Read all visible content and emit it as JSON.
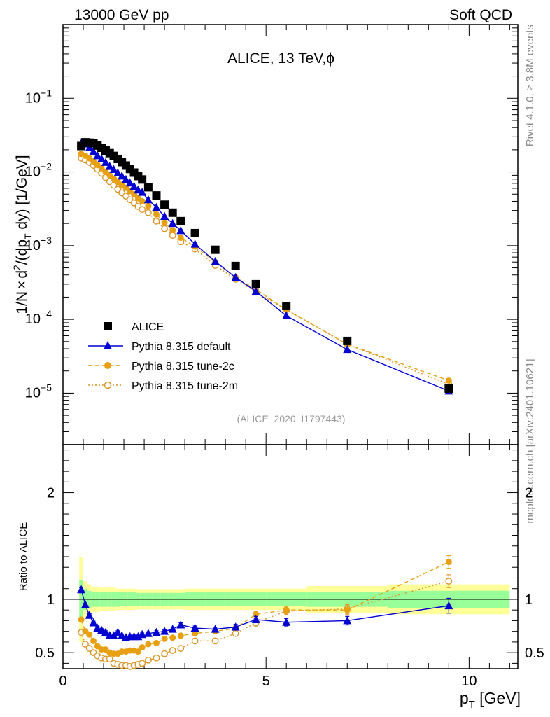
{
  "header": {
    "left": "13000 GeV pp",
    "right": "Soft QCD"
  },
  "title": "ALICE, 13 TeV,",
  "title_symbol": "ϕ",
  "side_labels": {
    "rivet": "Rivet 4.1.0, ≥ 3.8M events",
    "mcplots": "mcplots.cern.ch [arXiv:2401.10621]"
  },
  "analysis_id": "(ALICE_2020_I1797443)",
  "ratio_ylabel": "Ratio to ALICE",
  "colors": {
    "data": "#000000",
    "default": "#0000d0",
    "tune2c": "#e6a012",
    "tune2m": "#d99528",
    "band_inner": "#99ff99",
    "band_outer": "#ffff99"
  },
  "chart_data": [
    {
      "type": "scatter",
      "panel": "main",
      "title": "ALICE, 13 TeV, ϕ",
      "ylabel": "1/N × d²/(dp_T dy) [1/GeV]",
      "ylabel_parts": {
        "a": "1/N",
        "b": "×",
        "c": "d",
        "d": "2",
        "e": "/(dp",
        "f": "T",
        "g": " dy) [1/GeV]"
      },
      "yscale": "log",
      "xlim": [
        0,
        11.2
      ],
      "ylim": [
        2e-06,
        1
      ],
      "y_ticks": [
        {
          "v": 1e-05,
          "base": "10",
          "exp": "−5"
        },
        {
          "v": 0.0001,
          "base": "10",
          "exp": "−4"
        },
        {
          "v": 0.001,
          "base": "10",
          "exp": "−3"
        },
        {
          "v": 0.01,
          "base": "10",
          "exp": "−2"
        },
        {
          "v": 0.1,
          "base": "10",
          "exp": "−1"
        }
      ],
      "legend_position": "lower-left",
      "series": [
        {
          "name": "ALICE",
          "style": "filled-square",
          "x": [
            0.45,
            0.55,
            0.65,
            0.75,
            0.85,
            0.95,
            1.05,
            1.15,
            1.25,
            1.35,
            1.45,
            1.55,
            1.65,
            1.75,
            1.85,
            1.95,
            2.1,
            2.3,
            2.5,
            2.7,
            2.9,
            3.25,
            3.75,
            4.25,
            4.75,
            5.5,
            7.0,
            9.5
          ],
          "y": [
            0.0225,
            0.0253,
            0.025,
            0.0245,
            0.0228,
            0.0213,
            0.0195,
            0.018,
            0.0165,
            0.015,
            0.0136,
            0.0122,
            0.011,
            0.0098,
            0.0088,
            0.0079,
            0.0062,
            0.0048,
            0.0036,
            0.0028,
            0.00215,
            0.00148,
            0.00088,
            0.00053,
            0.0003,
            0.000152,
            5.1e-05,
            1.15e-05
          ]
        },
        {
          "name": "Pythia 8.315 default",
          "style": "line-triangle",
          "x": [
            0.45,
            0.55,
            0.65,
            0.75,
            0.85,
            0.95,
            1.05,
            1.15,
            1.25,
            1.35,
            1.45,
            1.55,
            1.65,
            1.75,
            1.85,
            1.95,
            2.1,
            2.3,
            2.5,
            2.7,
            2.9,
            3.25,
            3.75,
            4.25,
            4.75,
            5.5,
            7.0,
            9.5
          ],
          "y": [
            0.0245,
            0.024,
            0.0213,
            0.019,
            0.0166,
            0.0151,
            0.0135,
            0.0119,
            0.0108,
            0.0097,
            0.0088,
            0.0079,
            0.0071,
            0.0064,
            0.0057,
            0.0053,
            0.0042,
            0.0033,
            0.0025,
            0.002,
            0.0016,
            0.00105,
            0.00061,
            0.00037,
            0.00024,
            0.000112,
            3.9e-05,
            1.07e-05
          ]
        },
        {
          "name": "Pythia 8.315 tune-2c",
          "style": "dashed-filled-circle",
          "x": [
            0.45,
            0.55,
            0.65,
            0.75,
            0.85,
            0.95,
            1.05,
            1.15,
            1.25,
            1.35,
            1.45,
            1.55,
            1.65,
            1.75,
            1.85,
            1.95,
            2.1,
            2.3,
            2.5,
            2.7,
            2.9,
            3.25,
            3.75,
            4.25,
            4.75,
            5.5,
            7.0,
            9.5
          ],
          "y": [
            0.0176,
            0.0166,
            0.0153,
            0.0139,
            0.0124,
            0.0112,
            0.01,
            0.009,
            0.0081,
            0.0073,
            0.0067,
            0.0061,
            0.0055,
            0.005,
            0.0044,
            0.004,
            0.00345,
            0.00265,
            0.00205,
            0.00162,
            0.00128,
            0.00097,
            0.0006,
            0.00037,
            0.000255,
            0.000135,
            4.6e-05,
            1.48e-05
          ]
        },
        {
          "name": "Pythia 8.315 tune-2m",
          "style": "dotted-open-circle",
          "x": [
            0.45,
            0.55,
            0.65,
            0.75,
            0.85,
            0.95,
            1.05,
            1.15,
            1.25,
            1.35,
            1.45,
            1.55,
            1.65,
            1.75,
            1.85,
            1.95,
            2.1,
            2.3,
            2.5,
            2.7,
            2.9,
            3.25,
            3.75,
            4.25,
            4.75,
            5.5,
            7.0,
            9.5
          ],
          "y": [
            0.0154,
            0.0145,
            0.0135,
            0.0123,
            0.0109,
            0.0096,
            0.0084,
            0.0074,
            0.0066,
            0.0058,
            0.0052,
            0.0047,
            0.0042,
            0.0038,
            0.0034,
            0.0031,
            0.0028,
            0.00215,
            0.0017,
            0.00138,
            0.00113,
            0.0009,
            0.00054,
            0.00035,
            0.000235,
            0.000136,
            4.6e-05,
            1.32e-05
          ]
        }
      ]
    },
    {
      "type": "scatter",
      "panel": "ratio",
      "ylabel": "Ratio to ALICE",
      "xlabel": "p_T [GeV]",
      "xlabel_parts": {
        "a": "p",
        "b": "T",
        "c": " [GeV]"
      },
      "xlim": [
        0,
        11.2
      ],
      "ylim": [
        0.35,
        2.45
      ],
      "x_ticks": [
        {
          "v": 0,
          "label": "0"
        },
        {
          "v": 5,
          "label": "5"
        },
        {
          "v": 10,
          "label": "10"
        }
      ],
      "y_ticks": [
        {
          "v": 0.5,
          "label": "0.5"
        },
        {
          "v": 1,
          "label": "1"
        },
        {
          "v": 2,
          "label": "2"
        }
      ],
      "uncertainty_band": {
        "edges": [
          0.4,
          0.5,
          0.6,
          0.7,
          0.8,
          0.9,
          1.0,
          1.1,
          1.2,
          1.3,
          1.4,
          1.5,
          1.6,
          1.7,
          1.8,
          1.9,
          2.0,
          2.2,
          2.4,
          2.6,
          2.8,
          3.0,
          3.5,
          4.0,
          4.5,
          5.0,
          6.0,
          8.0,
          11.0
        ],
        "inner": [
          0.18,
          0.1,
          0.08,
          0.07,
          0.07,
          0.07,
          0.07,
          0.07,
          0.07,
          0.07,
          0.065,
          0.065,
          0.065,
          0.065,
          0.06,
          0.06,
          0.06,
          0.06,
          0.06,
          0.06,
          0.06,
          0.065,
          0.065,
          0.065,
          0.065,
          0.065,
          0.07,
          0.08
        ],
        "outer": [
          0.4,
          0.17,
          0.14,
          0.12,
          0.12,
          0.11,
          0.11,
          0.11,
          0.11,
          0.1,
          0.1,
          0.1,
          0.1,
          0.1,
          0.095,
          0.095,
          0.095,
          0.095,
          0.095,
          0.095,
          0.095,
          0.1,
          0.1,
          0.1,
          0.1,
          0.1,
          0.125,
          0.14
        ]
      },
      "series": [
        {
          "name": "Pythia 8.315 default",
          "style": "line-triangle",
          "x": [
            0.45,
            0.55,
            0.65,
            0.75,
            0.85,
            0.95,
            1.05,
            1.15,
            1.25,
            1.35,
            1.45,
            1.55,
            1.65,
            1.75,
            1.85,
            1.95,
            2.1,
            2.3,
            2.5,
            2.7,
            2.9,
            3.25,
            3.75,
            4.25,
            4.75,
            5.5,
            7.0,
            9.5
          ],
          "y": [
            1.09,
            0.95,
            0.85,
            0.78,
            0.73,
            0.71,
            0.69,
            0.66,
            0.66,
            0.69,
            0.66,
            0.64,
            0.65,
            0.65,
            0.65,
            0.67,
            0.68,
            0.69,
            0.7,
            0.72,
            0.76,
            0.73,
            0.72,
            0.74,
            0.81,
            0.785,
            0.8,
            0.94
          ],
          "yerr": [
            0.02,
            0.015,
            0.015,
            0.015,
            0.015,
            0.015,
            0.015,
            0.015,
            0.015,
            0.015,
            0.015,
            0.015,
            0.015,
            0.015,
            0.015,
            0.015,
            0.015,
            0.015,
            0.015,
            0.02,
            0.02,
            0.02,
            0.02,
            0.025,
            0.03,
            0.035,
            0.04,
            0.07
          ]
        },
        {
          "name": "Pythia 8.315 tune-2c",
          "style": "dashed-filled-circle",
          "x": [
            0.45,
            0.55,
            0.65,
            0.75,
            0.85,
            0.95,
            1.05,
            1.15,
            1.25,
            1.35,
            1.45,
            1.55,
            1.65,
            1.75,
            1.85,
            1.95,
            2.1,
            2.3,
            2.5,
            2.7,
            2.9,
            3.25,
            3.75,
            4.25,
            4.75,
            5.5,
            7.0,
            9.5
          ],
          "y": [
            0.81,
            0.7,
            0.67,
            0.61,
            0.56,
            0.53,
            0.53,
            0.5,
            0.49,
            0.49,
            0.51,
            0.51,
            0.52,
            0.52,
            0.51,
            0.55,
            0.58,
            0.59,
            0.63,
            0.64,
            0.66,
            0.68,
            0.7,
            0.73,
            0.86,
            0.9,
            0.9,
            1.35
          ],
          "yerr": [
            0.015,
            0.012,
            0.012,
            0.012,
            0.012,
            0.012,
            0.012,
            0.012,
            0.012,
            0.012,
            0.012,
            0.012,
            0.012,
            0.012,
            0.012,
            0.012,
            0.012,
            0.012,
            0.015,
            0.015,
            0.015,
            0.015,
            0.02,
            0.025,
            0.03,
            0.035,
            0.04,
            0.06
          ]
        },
        {
          "name": "Pythia 8.315 tune-2m",
          "style": "dotted-open-circle",
          "x": [
            0.45,
            0.55,
            0.65,
            0.75,
            0.85,
            0.95,
            1.05,
            1.15,
            1.25,
            1.35,
            1.45,
            1.55,
            1.65,
            1.75,
            1.85,
            1.95,
            2.1,
            2.3,
            2.5,
            2.7,
            2.9,
            3.25,
            3.75,
            4.25,
            4.75,
            5.5,
            7.0,
            9.5
          ],
          "y": [
            0.69,
            0.58,
            0.54,
            0.5,
            0.47,
            0.45,
            0.44,
            0.44,
            0.4,
            0.39,
            0.38,
            0.38,
            0.37,
            0.38,
            0.39,
            0.4,
            0.43,
            0.45,
            0.49,
            0.52,
            0.54,
            0.61,
            0.61,
            0.68,
            0.78,
            0.89,
            0.91,
            1.17
          ],
          "yerr": [
            0.015,
            0.012,
            0.012,
            0.012,
            0.012,
            0.012,
            0.012,
            0.012,
            0.012,
            0.012,
            0.012,
            0.012,
            0.012,
            0.012,
            0.012,
            0.012,
            0.012,
            0.012,
            0.015,
            0.015,
            0.015,
            0.015,
            0.02,
            0.025,
            0.03,
            0.035,
            0.04,
            0.06
          ]
        }
      ]
    }
  ]
}
